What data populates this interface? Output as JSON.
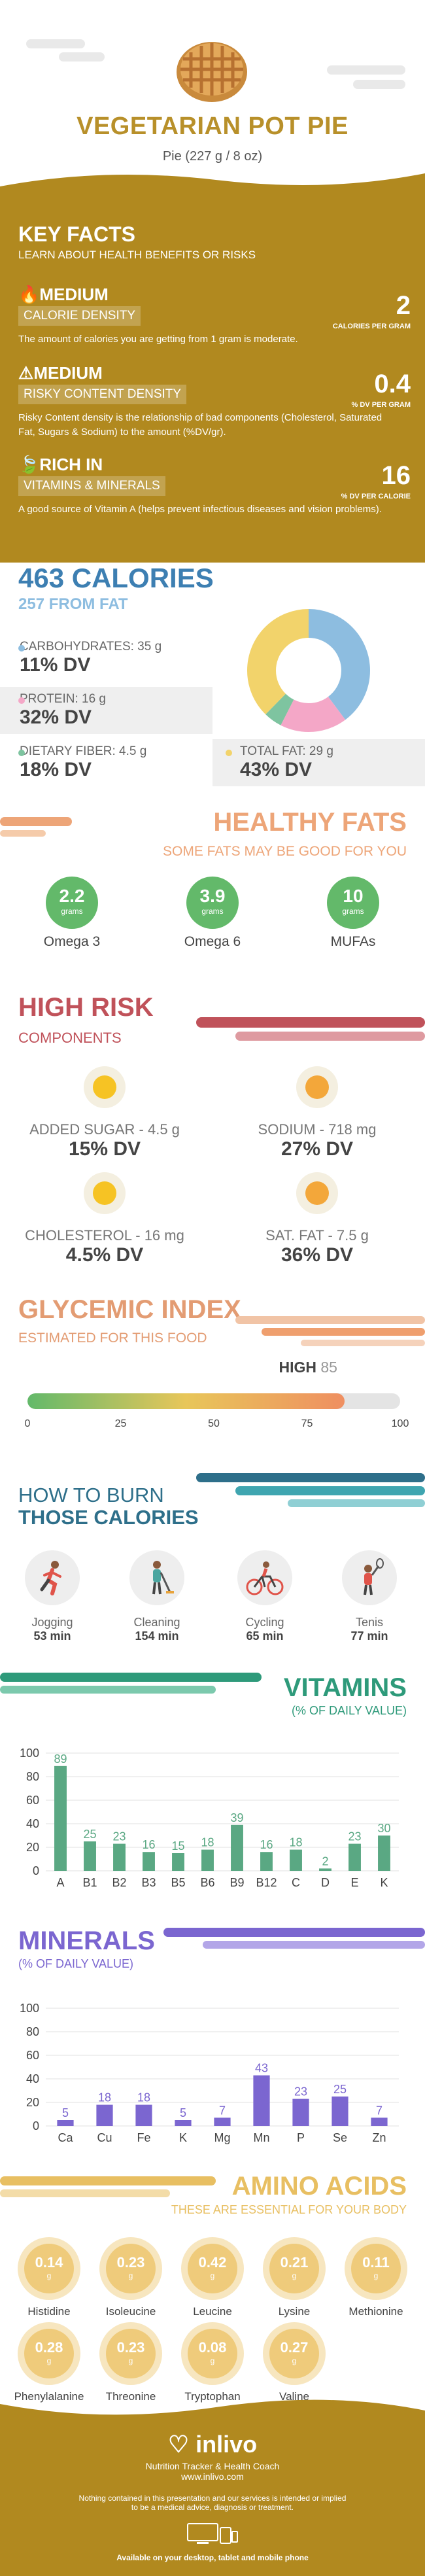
{
  "header": {
    "title": "VEGETARIAN POT PIE",
    "serving": "Pie (227 g / 8 oz)"
  },
  "key_facts": {
    "title": "KEY FACTS",
    "subtitle": "LEARN ABOUT HEALTH BENEFITS OR RISKS",
    "facts": [
      {
        "level": "MEDIUM",
        "name": "CALORIE DENSITY",
        "value": "2",
        "unit": "CALORIES PER GRAM",
        "desc": "The amount of calories you are getting from 1 gram is moderate."
      },
      {
        "level": "MEDIUM",
        "name": "RISKY CONTENT DENSITY",
        "value": "0.4",
        "unit": "% DV PER GRAM",
        "desc": "Risky Content density is the relationship of bad components (Cholesterol, Saturated Fat, Sugars & Sodium) to the amount (%DV/gr)."
      },
      {
        "level": "RICH IN",
        "name": "VITAMINS & MINERALS",
        "value": "16",
        "unit": "% DV PER CALORIE",
        "desc": "A good source of Vitamin A (helps prevent infectious diseases and vision problems)."
      }
    ]
  },
  "calories": {
    "title": "463 CALORIES",
    "subtitle": "257 FROM FAT",
    "nutrients": [
      {
        "label": "CARBOHYDRATES: 35 g",
        "dv": "11% DV",
        "color": "#8dbde0"
      },
      {
        "label": "PROTEIN: 16 g",
        "dv": "32% DV",
        "color": "#f4a7c7"
      },
      {
        "label": "DIETARY FIBER: 4.5 g",
        "dv": "18% DV",
        "color": "#7ec4a0"
      },
      {
        "label": "TOTAL FAT: 29 g",
        "dv": "43% DV",
        "color": "#f2d36b"
      }
    ]
  },
  "healthy_fats": {
    "title": "HEALTHY FATS",
    "subtitle": "SOME FATS MAY BE GOOD FOR YOU",
    "items": [
      {
        "value": "2.2",
        "unit": "grams",
        "name": "Omega 3"
      },
      {
        "value": "3.9",
        "unit": "grams",
        "name": "Omega 6"
      },
      {
        "value": "10",
        "unit": "grams",
        "name": "MUFAs"
      }
    ]
  },
  "high_risk": {
    "title": "HIGH RISK",
    "subtitle": "COMPONENTS",
    "items": [
      {
        "label": "ADDED SUGAR - 4.5 g",
        "dv": "15% DV"
      },
      {
        "label": "SODIUM - 718 mg",
        "dv": "27% DV"
      },
      {
        "label": "CHOLESTEROL - 16 mg",
        "dv": "4.5% DV"
      },
      {
        "label": "SAT. FAT - 7.5 g",
        "dv": "36% DV"
      }
    ]
  },
  "glycemic": {
    "title": "GLYCEMIC INDEX",
    "subtitle": "ESTIMATED FOR THIS FOOD",
    "level": "HIGH",
    "value": "85",
    "value_num": 85,
    "ticks": [
      "0",
      "25",
      "50",
      "75",
      "100"
    ]
  },
  "burn": {
    "title1": "HOW TO BURN",
    "title2": "THOSE CALORIES",
    "activities": [
      {
        "name": "Jogging",
        "minutes": "53 min"
      },
      {
        "name": "Cleaning",
        "minutes": "154 min"
      },
      {
        "name": "Cycling",
        "minutes": "65 min"
      },
      {
        "name": "Tenis",
        "minutes": "77 min"
      }
    ]
  },
  "vitamins": {
    "title": "VITAMINS",
    "subtitle": "(% OF DAILY VALUE)"
  },
  "minerals": {
    "title": "MINERALS",
    "subtitle": "(% OF DAILY VALUE)"
  },
  "chart_data": [
    {
      "type": "bar",
      "title": "VITAMINS",
      "categories": [
        "A",
        "B1",
        "B2",
        "B3",
        "B5",
        "B6",
        "B9",
        "B12",
        "C",
        "D",
        "E",
        "K"
      ],
      "values": [
        89,
        25,
        23,
        16,
        15,
        18,
        39,
        16,
        18,
        2,
        23,
        30
      ],
      "ylim": [
        0,
        100
      ],
      "yticks": [
        0,
        20,
        40,
        60,
        80,
        100
      ],
      "color": "#5aa883"
    },
    {
      "type": "bar",
      "title": "MINERALS",
      "categories": [
        "Ca",
        "Cu",
        "Fe",
        "K",
        "Mg",
        "Mn",
        "P",
        "Se",
        "Zn"
      ],
      "values": [
        5,
        18,
        18,
        5,
        7,
        43,
        23,
        25,
        7
      ],
      "ylim": [
        0,
        100
      ],
      "yticks": [
        0,
        20,
        40,
        60,
        80,
        100
      ],
      "color": "#7b66d0"
    }
  ],
  "amino": {
    "title": "AMINO ACIDS",
    "subtitle": "THESE ARE ESSENTIAL FOR YOUR BODY",
    "items": [
      {
        "value": "0.14",
        "unit": "g",
        "name": "Histidine"
      },
      {
        "value": "0.23",
        "unit": "g",
        "name": "Isoleucine"
      },
      {
        "value": "0.42",
        "unit": "g",
        "name": "Leucine"
      },
      {
        "value": "0.21",
        "unit": "g",
        "name": "Lysine"
      },
      {
        "value": "0.11",
        "unit": "g",
        "name": "Methionine"
      },
      {
        "value": "0.28",
        "unit": "g",
        "name": "Phenylalanine"
      },
      {
        "value": "0.23",
        "unit": "g",
        "name": "Threonine"
      },
      {
        "value": "0.08",
        "unit": "g",
        "name": "Tryptophan"
      },
      {
        "value": "0.27",
        "unit": "g",
        "name": "Valine"
      }
    ]
  },
  "footer": {
    "brand": "inlivo",
    "tagline": "Nutrition Tracker & Health Coach",
    "url": "www.inlivo.com",
    "disclaimer1": "Nothing contained in this presentation and our services is intended or implied",
    "disclaimer2": "to be a medical advice, diagnosis or treatment.",
    "available": "Available on your desktop, tablet and mobile phone"
  }
}
